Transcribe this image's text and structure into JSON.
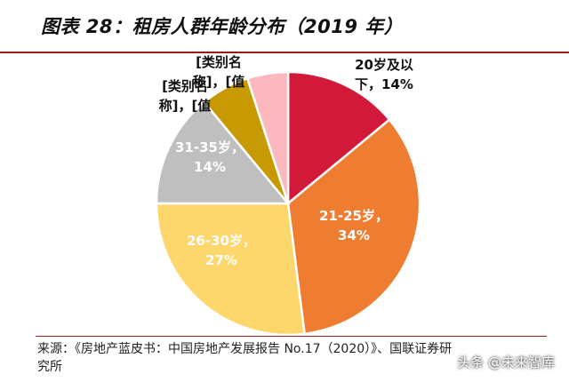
{
  "header": {
    "title": "图表 28：租房人群年龄分布（2019 年）"
  },
  "footer": {
    "source": "来源：《房地产蓝皮书：中国房地产发展报告 No.17（2020）》、国联证券研究所",
    "watermark": "头条 @未来智库"
  },
  "chart_data": {
    "type": "pie",
    "title": "租房人群年龄分布（2019 年）",
    "slices": [
      {
        "label_lines": [
          "20岁及以",
          "下，14%"
        ],
        "category": "20岁及以下",
        "value": 14,
        "color": "#d2193a"
      },
      {
        "label_lines": [
          "21-25岁，",
          "34%"
        ],
        "category": "21-25岁",
        "value": 34,
        "color": "#ee7d31"
      },
      {
        "label_lines": [
          "26-30岁，",
          "27%"
        ],
        "category": "26-30岁",
        "value": 27,
        "color": "#fdd66c"
      },
      {
        "label_lines": [
          "31-35岁，",
          "14%"
        ],
        "category": "31-35岁",
        "value": 14,
        "color": "#bfbfbf"
      },
      {
        "label_lines": [
          "[类别名",
          "称]，[值"
        ],
        "category": "[类别名称]",
        "value": 6,
        "color": "#c79a04"
      },
      {
        "label_lines": [
          "[类别名",
          "称]，[值"
        ],
        "category": "[类别名称]",
        "value": 5,
        "color": "#fbb8bf"
      }
    ]
  }
}
